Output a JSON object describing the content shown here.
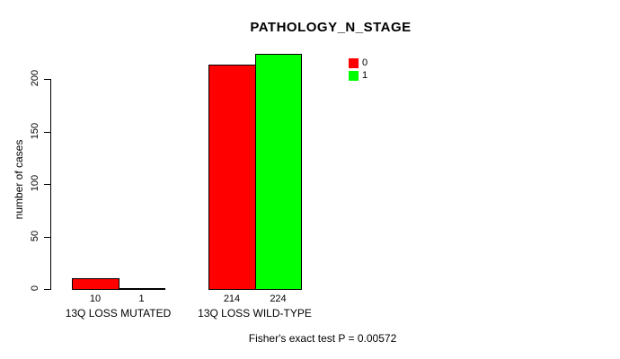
{
  "title": "PATHOLOGY_N_STAGE",
  "footer": "Fisher's exact test P = 0.00572",
  "chart_data": {
    "type": "bar",
    "title": "PATHOLOGY_N_STAGE",
    "xlabel": "",
    "ylabel": "number of cases",
    "ylim": [
      0,
      224
    ],
    "yticks": [
      0,
      50,
      100,
      150,
      200
    ],
    "grid": false,
    "categories": [
      "13Q LOSS MUTATED",
      "13Q LOSS WILD-TYPE"
    ],
    "series": [
      {
        "name": "0",
        "color": "#ff0000",
        "values": [
          10,
          214
        ]
      },
      {
        "name": "1",
        "color": "#00ff00",
        "values": [
          1,
          224
        ]
      }
    ],
    "bar_value_labels": [
      [
        "10",
        "214"
      ],
      [
        "1",
        "224"
      ]
    ],
    "legend_position": "top-right",
    "annotation": "Fisher's exact test P = 0.00572"
  },
  "legend": {
    "items": [
      {
        "label": "0",
        "color": "#ff0000"
      },
      {
        "label": "1",
        "color": "#00ff00"
      }
    ]
  }
}
